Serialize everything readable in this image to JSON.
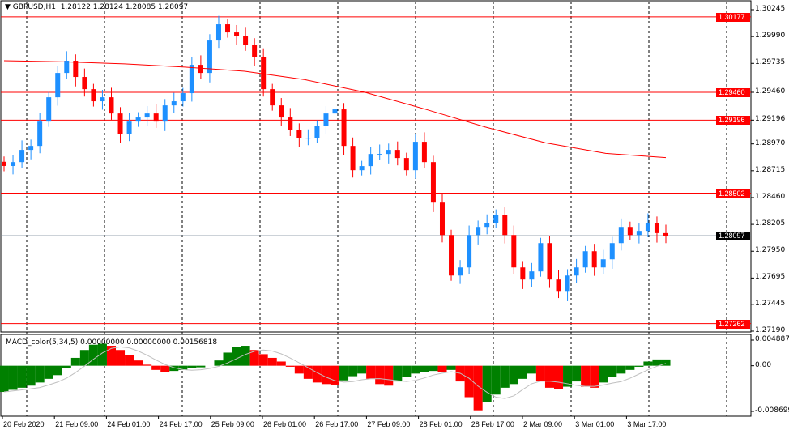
{
  "header": {
    "symbol": "GBPUSD,H1",
    "ohlc": "1.28122 1.28124 1.28085 1.28097"
  },
  "indicator": {
    "label": "MACD_color(5,34,5) 0.00000000 0.00000000 0.00156818"
  },
  "chart_data": {
    "type": "candlestick",
    "price_axis": {
      "range": [
        1.2719,
        1.30245
      ],
      "ticks": [
        "1.30245",
        "1.29990",
        "1.29735",
        "1.29460",
        "1.29196",
        "1.28970",
        "1.28715",
        "1.28460",
        "1.28205",
        "1.27950",
        "1.27695",
        "1.27445",
        "1.27190"
      ]
    },
    "levels": [
      {
        "value": "1.30177",
        "color": "#ff0000"
      },
      {
        "value": "1.29460",
        "color": "#ff0000"
      },
      {
        "value": "1.29196",
        "color": "#ff0000"
      },
      {
        "value": "1.28502",
        "color": "#ff0000"
      },
      {
        "value": "1.28097",
        "color": "#000000",
        "current": true
      },
      {
        "value": "1.27262",
        "color": "#ff0000"
      }
    ],
    "time_labels": [
      "20 Feb 2020",
      "21 Feb 09:00",
      "24 Feb 01:00",
      "24 Feb 17:00",
      "25 Feb 09:00",
      "26 Feb 01:00",
      "26 Feb 17:00",
      "27 Feb 09:00",
      "28 Feb 01:00",
      "28 Feb 17:00",
      "2 Mar 09:00",
      "3 Mar 01:00",
      "3 Mar 17:00"
    ],
    "close": [
      1.2876,
      1.28797,
      1.28913,
      1.28951,
      1.29182,
      1.29413,
      1.29644,
      1.2976,
      1.29606,
      1.2949,
      1.29375,
      1.29413,
      1.29259,
      1.29067,
      1.29182,
      1.29221,
      1.29259,
      1.29182,
      1.29336,
      1.29375,
      1.29452,
      1.29721,
      1.29644,
      1.29952,
      1.30106,
      1.30029,
      1.29991,
      1.29914,
      1.29798,
      1.2949,
      1.29336,
      1.29221,
      1.29105,
      1.29028,
      1.29028,
      1.29144,
      1.29259,
      1.29298,
      1.28951,
      1.2872,
      1.28759,
      1.28874,
      1.28874,
      1.28913,
      1.28836,
      1.2872,
      1.2899,
      1.28797,
      1.28412,
      1.28104,
      1.27719,
      1.27796,
      1.28104,
      1.28181,
      1.2822,
      1.28297,
      1.28104,
      1.27796,
      1.27681,
      1.27758,
      1.28027,
      1.27681,
      1.27565,
      1.27719,
      1.27796,
      1.2795,
      1.27796,
      1.27873,
      1.28027,
      1.28181,
      1.28104,
      1.28143,
      1.2822,
      1.28122,
      1.28097
    ],
    "moving_average": {
      "color": "#ff0000",
      "values": [
        1.2976,
        1.2975,
        1.2973,
        1.297,
        1.2966,
        1.2958,
        1.2946,
        1.293,
        1.2913,
        1.2898,
        1.2888,
        1.2884
      ]
    },
    "macd": {
      "range": [
        -0.0086993,
        0.0048871
      ],
      "ticks": [
        "0.0048871",
        "0.00",
        "-0.0086993"
      ],
      "values": [
        -0.005,
        -0.0046,
        -0.0042,
        -0.0038,
        -0.0032,
        -0.0025,
        -0.0018,
        -0.0005,
        0.0015,
        0.003,
        0.004,
        0.0042,
        0.0038,
        0.003,
        0.002,
        0.001,
        0.0002,
        -0.0008,
        -0.0012,
        -0.001,
        -0.0008,
        -0.0005,
        -0.0003,
        0.0,
        0.001,
        0.0025,
        0.0035,
        0.0038,
        0.003,
        0.0022,
        0.0015,
        0.0008,
        -0.0002,
        -0.0015,
        -0.0025,
        -0.0032,
        -0.0035,
        -0.0036,
        -0.0028,
        -0.002,
        -0.0015,
        -0.0025,
        -0.0035,
        -0.0038,
        -0.003,
        -0.0022,
        -0.0015,
        -0.0012,
        -0.001,
        -0.0012,
        -0.0008,
        -0.003,
        -0.006,
        -0.0085,
        -0.007,
        -0.0055,
        -0.0042,
        -0.0035,
        -0.0025,
        -0.0015,
        -0.003,
        -0.0042,
        -0.0045,
        -0.004,
        -0.003,
        -0.004,
        -0.0042,
        -0.0032,
        -0.0022,
        -0.0015,
        -0.0008,
        -0.0002,
        0.0008,
        0.0012,
        0.0012
      ]
    },
    "colors": {
      "bull": "#1e90ff",
      "bear": "#ff0000",
      "macd_up": "#008000",
      "macd_down": "#ff0000"
    }
  }
}
